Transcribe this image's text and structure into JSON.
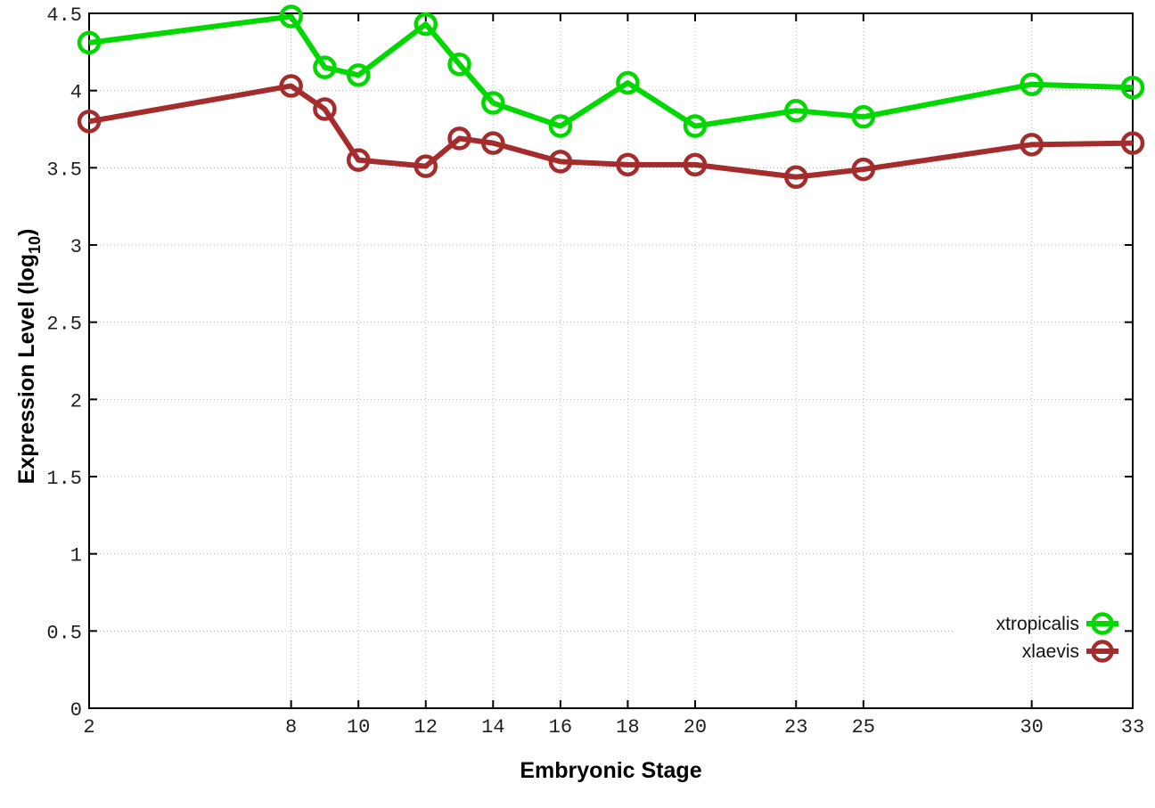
{
  "chart_data": {
    "type": "line",
    "title": "",
    "xlabel": "Embryonic Stage",
    "ylabel": "Expression Level (log10)",
    "ylabel_parts": {
      "main": "Expression Level (log",
      "sub": "10",
      "close": ")"
    },
    "xlim": [
      2,
      33
    ],
    "ylim": [
      0,
      4.5
    ],
    "grid": true,
    "xtick_values": [
      2,
      8,
      10,
      12,
      14,
      16,
      18,
      20,
      23,
      25,
      30,
      33
    ],
    "xtick_labels": [
      "2",
      "8",
      "10",
      "12",
      "14",
      "16",
      "18",
      "20",
      "23",
      "25",
      "30",
      "33"
    ],
    "ytick_values": [
      0,
      0.5,
      1,
      1.5,
      2,
      2.5,
      3,
      3.5,
      4,
      4.5
    ],
    "ytick_labels": [
      "0",
      "0.5",
      "1",
      "1.5",
      "2",
      "2.5",
      "3",
      "3.5",
      "4",
      "4.5"
    ],
    "x": [
      2,
      8,
      9,
      10,
      12,
      13,
      14,
      16,
      18,
      20,
      23,
      25,
      30,
      33
    ],
    "series": [
      {
        "name": "xtropicalis",
        "color": "#00d800",
        "marker": "open-circle",
        "values": [
          4.31,
          4.48,
          4.15,
          4.1,
          4.43,
          4.17,
          3.92,
          3.77,
          4.05,
          3.77,
          3.87,
          3.83,
          4.04,
          4.02
        ]
      },
      {
        "name": "xlaevis",
        "color": "#a42c2c",
        "marker": "open-circle",
        "values": [
          3.8,
          4.03,
          3.88,
          3.55,
          3.51,
          3.69,
          3.66,
          3.54,
          3.52,
          3.52,
          3.44,
          3.49,
          3.65,
          3.66
        ]
      }
    ],
    "legend": {
      "position": "right-middle",
      "entries": [
        "xtropicalis",
        "xlaevis"
      ]
    },
    "colors": {
      "background": "#ffffff",
      "border": "#000000",
      "grid": "#b8b8b8",
      "tick_text": "#1f1f1f"
    }
  }
}
